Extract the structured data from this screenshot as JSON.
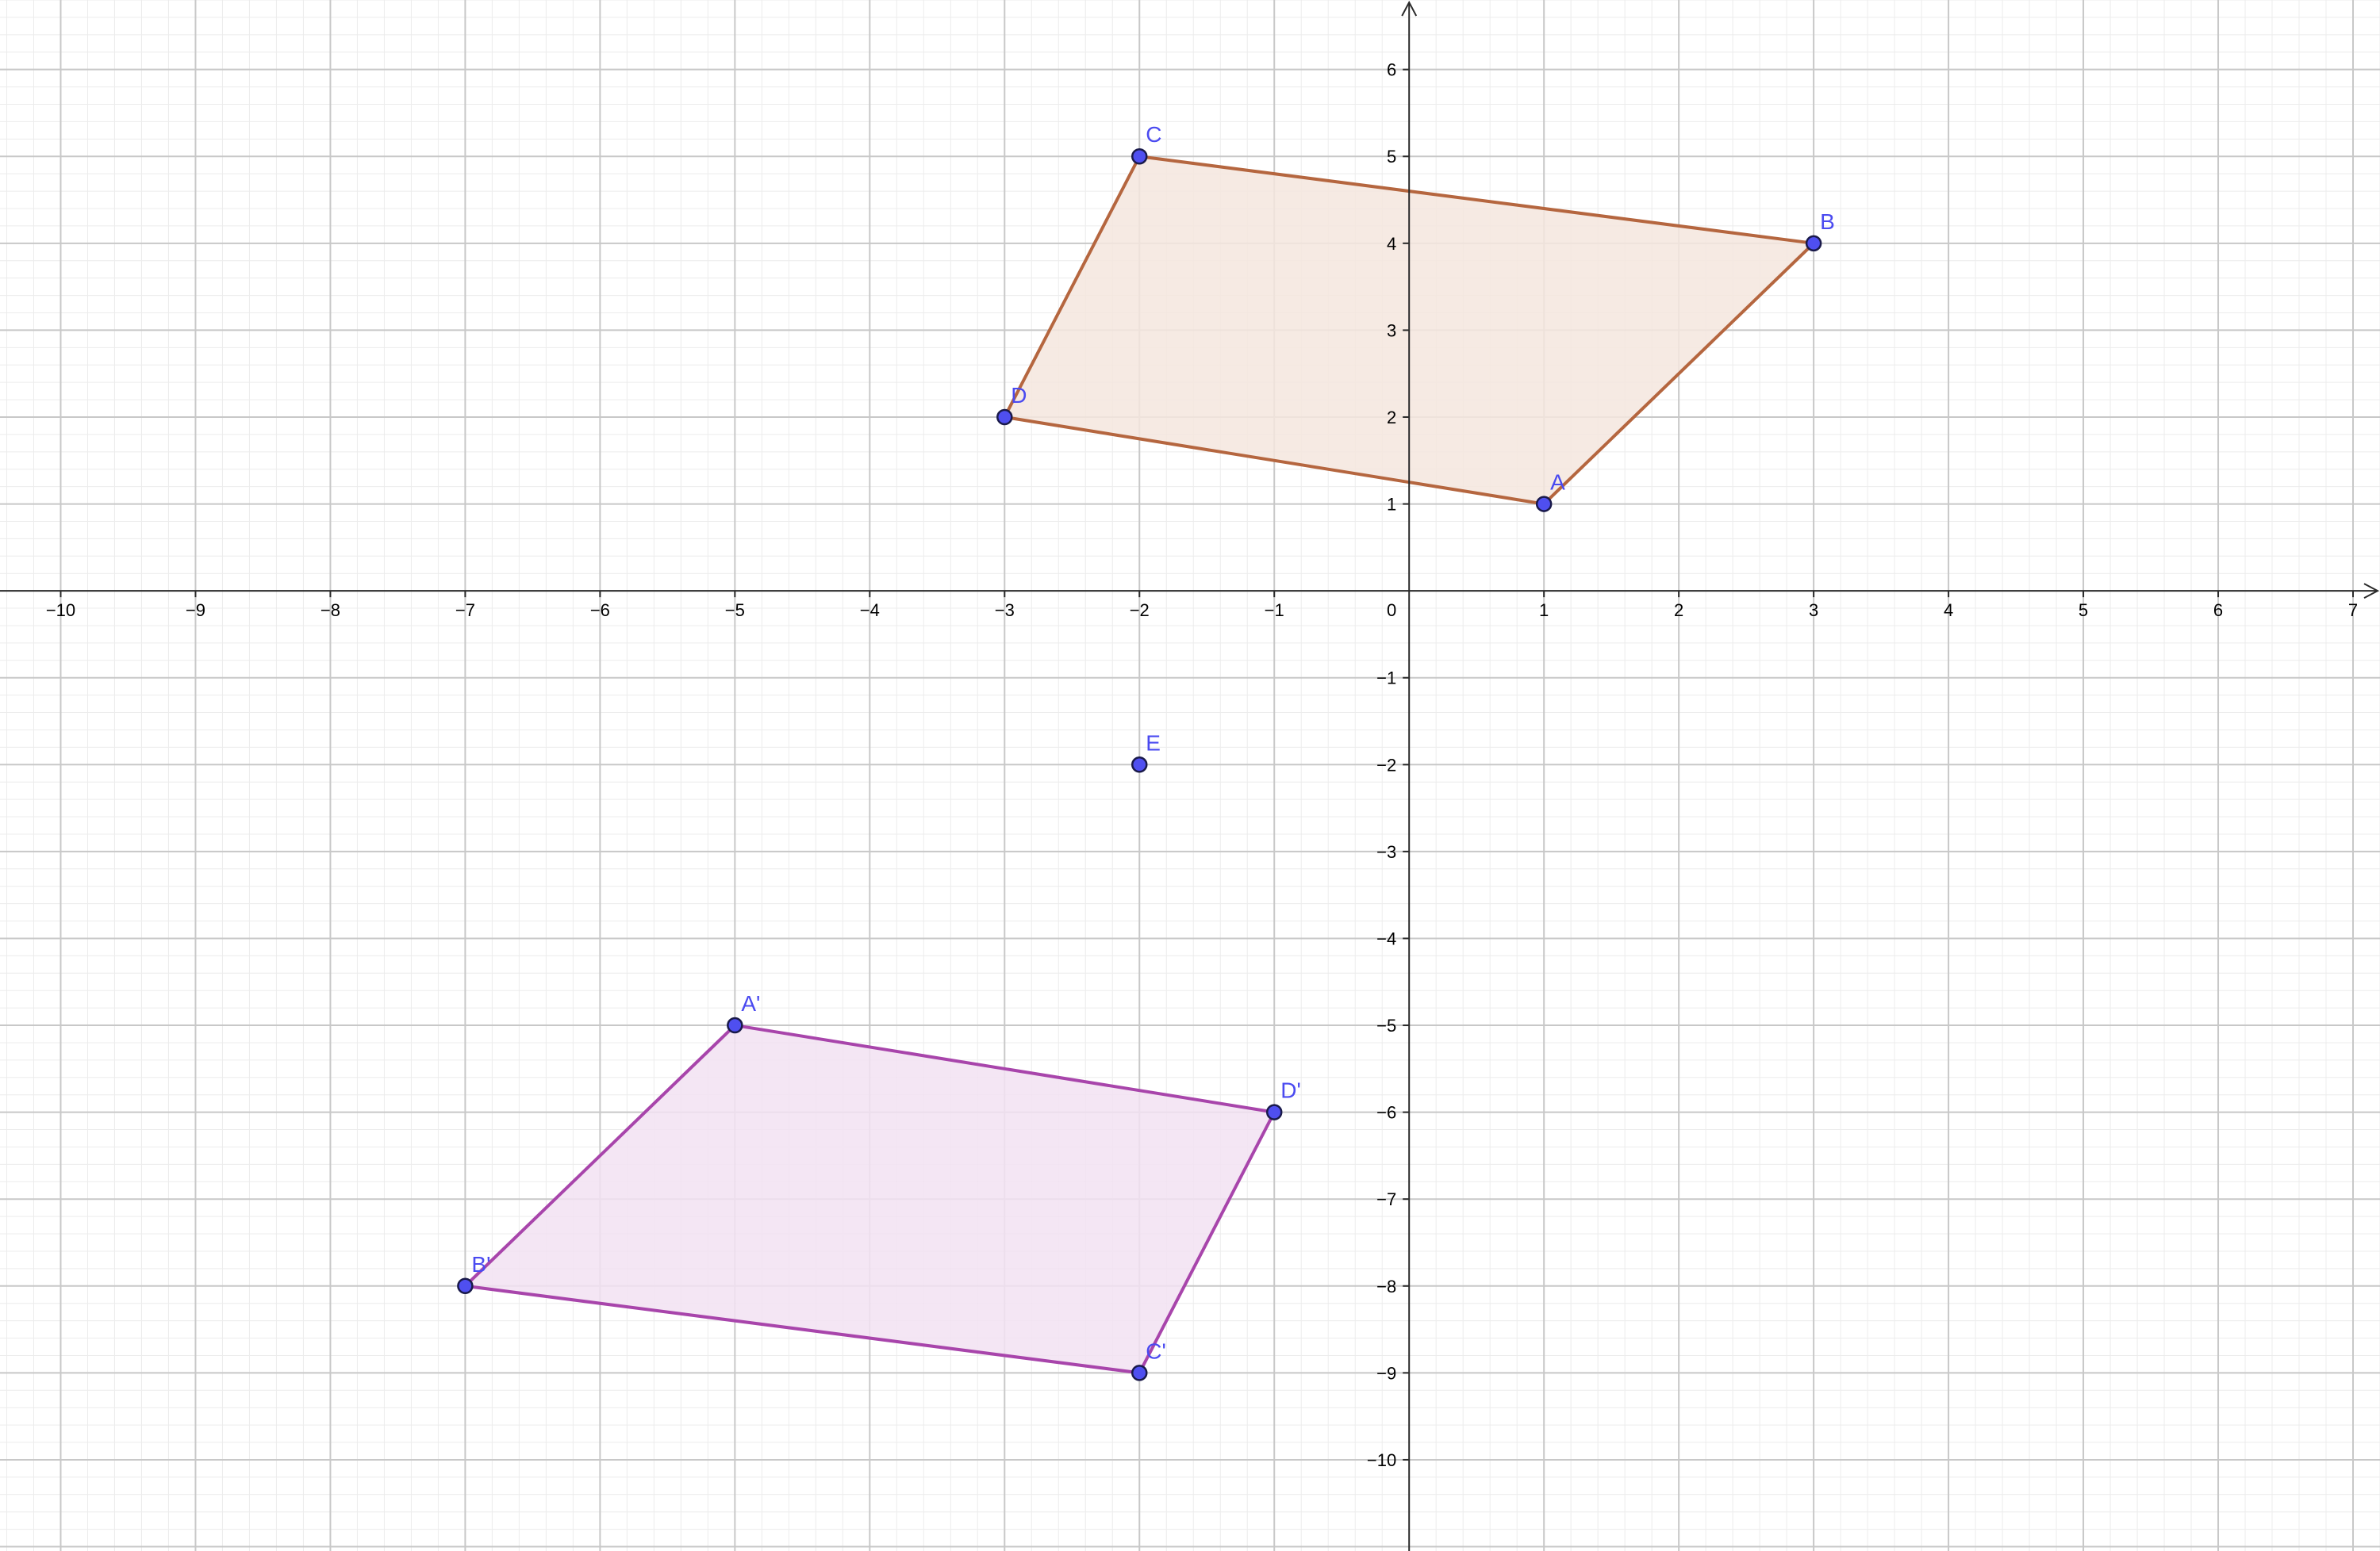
{
  "axes": {
    "x_range": [
      -10.45,
      7.2
    ],
    "y_range": [
      -11.05,
      6.8
    ],
    "x_ticks": [
      -10,
      -9,
      -8,
      -7,
      -6,
      -5,
      -4,
      -3,
      -2,
      -1,
      1,
      2,
      3,
      4,
      5,
      6,
      7
    ],
    "y_ticks": [
      -10,
      -9,
      -8,
      -7,
      -6,
      -5,
      -4,
      -3,
      -2,
      -1,
      1,
      2,
      3,
      4,
      5,
      6
    ],
    "origin_label": "0",
    "major_grid": true,
    "minor_grid_per_unit": 5,
    "minus_sign": "−"
  },
  "colors": {
    "major_grid": "#c8c8c8",
    "minor_grid": "#ececec",
    "axis": "#2a2a2a",
    "point_fill": "#4f4ff0",
    "point_stroke": "#1a1a4a",
    "label": "#4a4af0"
  },
  "points": [
    {
      "name": "A",
      "label": "A",
      "x": 1,
      "y": 1
    },
    {
      "name": "B",
      "label": "B",
      "x": 3,
      "y": 4
    },
    {
      "name": "C",
      "label": "C",
      "x": -2,
      "y": 5
    },
    {
      "name": "D",
      "label": "D",
      "x": -3,
      "y": 2
    },
    {
      "name": "E",
      "label": "E",
      "x": -2,
      "y": -2
    },
    {
      "name": "A-prime",
      "label": "A'",
      "x": -5,
      "y": -5
    },
    {
      "name": "B-prime",
      "label": "B'",
      "x": -7,
      "y": -8
    },
    {
      "name": "C-prime",
      "label": "C'",
      "x": -2,
      "y": -9
    },
    {
      "name": "D-prime",
      "label": "D'",
      "x": -1,
      "y": -6
    }
  ],
  "polygons": [
    {
      "name": "quadrilateral-ABCD",
      "vertices": [
        "A",
        "B",
        "C",
        "D"
      ],
      "stroke": "#b5663f",
      "fill": "#f4e6de"
    },
    {
      "name": "quadrilateral-A'B'C'D'",
      "vertices": [
        "A-prime",
        "D-prime",
        "C-prime",
        "B-prime"
      ],
      "stroke": "#a845ab",
      "fill": "#f2e2f2"
    }
  ]
}
